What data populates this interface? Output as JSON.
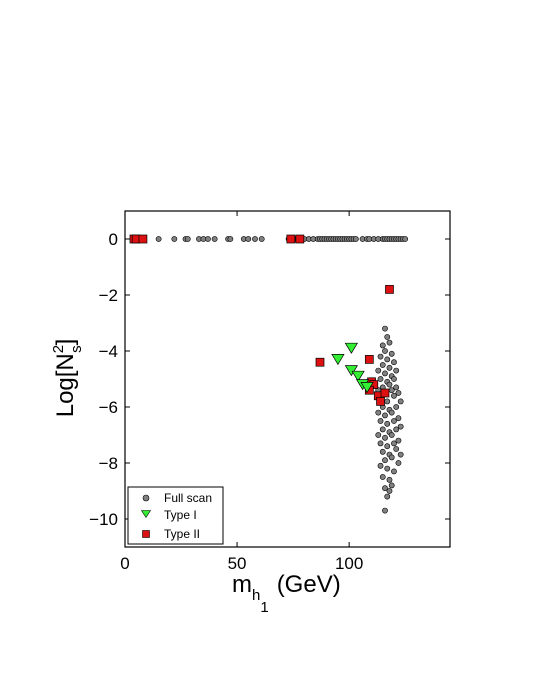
{
  "chart_data": {
    "type": "scatter",
    "xlabel": {
      "base": "m",
      "sub": "h",
      "subsub": "1",
      "unit": "(GeV)"
    },
    "ylabel": {
      "prefix": "Log[N",
      "sup": "2",
      "sub": "s",
      "suffix": "]"
    },
    "xlim": [
      0,
      145
    ],
    "ylim": [
      -11,
      1
    ],
    "xticks": [
      0,
      50,
      100
    ],
    "yticks": [
      0,
      -2,
      -4,
      -6,
      -8,
      -10
    ],
    "xtick_labels": [
      "0",
      "50",
      "100"
    ],
    "ytick_labels": [
      "0",
      "−2",
      "−4",
      "−6",
      "−8",
      "−10"
    ],
    "grid": false,
    "legend_position": "bottom-left",
    "legend": [
      {
        "label": "Full scan",
        "marker": "circle",
        "color": "#808080"
      },
      {
        "label": "Type I",
        "marker": "triangle-down",
        "color": "#33ee33"
      },
      {
        "label": "Type II",
        "marker": "square",
        "color": "#dd1111"
      }
    ],
    "series": [
      {
        "name": "Full scan",
        "marker": "circle",
        "color": "#808080",
        "points": [
          [
            4,
            0
          ],
          [
            6,
            0
          ],
          [
            8,
            0
          ],
          [
            15,
            0
          ],
          [
            22,
            0
          ],
          [
            27,
            0
          ],
          [
            28,
            0
          ],
          [
            33,
            0
          ],
          [
            35,
            0
          ],
          [
            37,
            0
          ],
          [
            40,
            0
          ],
          [
            46,
            0
          ],
          [
            47,
            0
          ],
          [
            53,
            0
          ],
          [
            55,
            0
          ],
          [
            58,
            0
          ],
          [
            61,
            0
          ],
          [
            73,
            0
          ],
          [
            74,
            0
          ],
          [
            76,
            0
          ],
          [
            77,
            0
          ],
          [
            80,
            0
          ],
          [
            82,
            0
          ],
          [
            84,
            0
          ],
          [
            86,
            0
          ],
          [
            87,
            0
          ],
          [
            88,
            0
          ],
          [
            89,
            0
          ],
          [
            90,
            0
          ],
          [
            91,
            0
          ],
          [
            92,
            0
          ],
          [
            93,
            0
          ],
          [
            94,
            0
          ],
          [
            95,
            0
          ],
          [
            96,
            0
          ],
          [
            97,
            0
          ],
          [
            98,
            0
          ],
          [
            99,
            0
          ],
          [
            100,
            0
          ],
          [
            101,
            0
          ],
          [
            102,
            0
          ],
          [
            103,
            0
          ],
          [
            106,
            0
          ],
          [
            108,
            0
          ],
          [
            109,
            0
          ],
          [
            111,
            0
          ],
          [
            113,
            0
          ],
          [
            115,
            0
          ],
          [
            116,
            0
          ],
          [
            117,
            0
          ],
          [
            118,
            0
          ],
          [
            119,
            0
          ],
          [
            120,
            0
          ],
          [
            121,
            0
          ],
          [
            122,
            0
          ],
          [
            123,
            0
          ],
          [
            124,
            0
          ],
          [
            125,
            0
          ],
          [
            116,
            -3.2
          ],
          [
            117,
            -3.5
          ],
          [
            115,
            -3.8
          ],
          [
            118,
            -3.7
          ],
          [
            116,
            -4.0
          ],
          [
            114,
            -4.2
          ],
          [
            117,
            -4.3
          ],
          [
            119,
            -4.1
          ],
          [
            115,
            -4.5
          ],
          [
            118,
            -4.6
          ],
          [
            120,
            -4.4
          ],
          [
            113,
            -4.7
          ],
          [
            116,
            -4.8
          ],
          [
            119,
            -4.9
          ],
          [
            121,
            -4.7
          ],
          [
            114,
            -5.0
          ],
          [
            117,
            -5.1
          ],
          [
            120,
            -5.0
          ],
          [
            115,
            -5.3
          ],
          [
            118,
            -5.2
          ],
          [
            121,
            -5.3
          ],
          [
            113,
            -5.4
          ],
          [
            116,
            -5.5
          ],
          [
            119,
            -5.4
          ],
          [
            122,
            -5.5
          ],
          [
            114,
            -5.7
          ],
          [
            117,
            -5.8
          ],
          [
            120,
            -5.6
          ],
          [
            123,
            -5.8
          ],
          [
            115,
            -6.0
          ],
          [
            118,
            -6.1
          ],
          [
            121,
            -6.0
          ],
          [
            113,
            -6.2
          ],
          [
            116,
            -6.3
          ],
          [
            119,
            -6.2
          ],
          [
            122,
            -6.4
          ],
          [
            114,
            -6.5
          ],
          [
            117,
            -6.6
          ],
          [
            120,
            -6.5
          ],
          [
            123,
            -6.7
          ],
          [
            115,
            -6.8
          ],
          [
            118,
            -6.9
          ],
          [
            121,
            -6.8
          ],
          [
            113,
            -7.0
          ],
          [
            116,
            -7.1
          ],
          [
            119,
            -7.0
          ],
          [
            122,
            -7.2
          ],
          [
            114,
            -7.3
          ],
          [
            117,
            -7.4
          ],
          [
            120,
            -7.3
          ],
          [
            115,
            -7.6
          ],
          [
            118,
            -7.7
          ],
          [
            121,
            -7.5
          ],
          [
            116,
            -7.9
          ],
          [
            119,
            -7.8
          ],
          [
            122,
            -8.0
          ],
          [
            123,
            -7.7
          ],
          [
            114,
            -8.1
          ],
          [
            117,
            -8.2
          ],
          [
            120,
            -8.3
          ],
          [
            115,
            -8.5
          ],
          [
            118,
            -8.6
          ],
          [
            116,
            -8.9
          ],
          [
            119,
            -8.8
          ],
          [
            117,
            -9.2
          ],
          [
            116,
            -9.7
          ],
          [
            118,
            -9.0
          ]
        ]
      },
      {
        "name": "Type I",
        "marker": "triangle-down",
        "color": "#33ee33",
        "points": [
          [
            95,
            -4.3
          ],
          [
            101,
            -3.9
          ],
          [
            101,
            -4.7
          ],
          [
            104,
            -4.9
          ],
          [
            106,
            -5.2
          ],
          [
            108,
            -5.3
          ]
        ]
      },
      {
        "name": "Type II",
        "marker": "square",
        "color": "#dd1111",
        "points": [
          [
            4,
            0
          ],
          [
            5,
            0
          ],
          [
            8,
            0
          ],
          [
            74,
            0
          ],
          [
            78,
            0
          ],
          [
            87,
            -4.4
          ],
          [
            109,
            -4.3
          ],
          [
            110,
            -5.1
          ],
          [
            111,
            -5.2
          ],
          [
            109,
            -5.4
          ],
          [
            113,
            -5.6
          ],
          [
            114,
            -5.8
          ],
          [
            116,
            -5.5
          ],
          [
            118,
            -1.8
          ]
        ]
      }
    ]
  }
}
